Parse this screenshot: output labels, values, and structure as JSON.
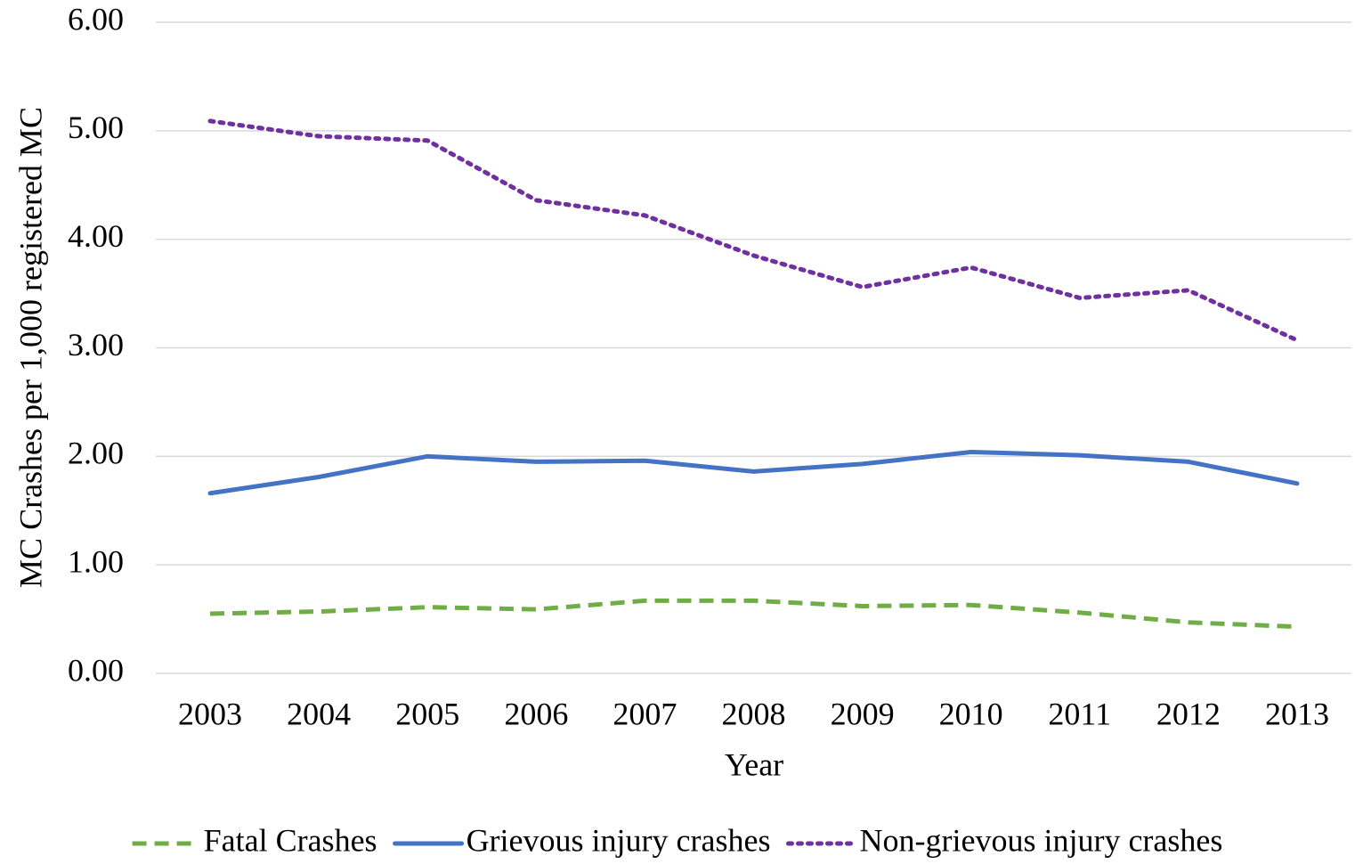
{
  "chart_data": {
    "type": "line",
    "y_label": "MC Crashes per 1,000 registered MC",
    "x_label": "Year",
    "categories": [
      "2003",
      "2004",
      "2005",
      "2006",
      "2007",
      "2008",
      "2009",
      "2010",
      "2011",
      "2012",
      "2013"
    ],
    "series": [
      {
        "name": "Fatal Crashes",
        "color": "#70ad47",
        "dash": "dashed",
        "values": [
          0.55,
          0.57,
          0.61,
          0.59,
          0.67,
          0.67,
          0.62,
          0.63,
          0.56,
          0.47,
          0.43
        ]
      },
      {
        "name": "Grievous injury crashes",
        "color": "#4472c4",
        "dash": "solid",
        "values": [
          1.66,
          1.81,
          2.0,
          1.95,
          1.96,
          1.86,
          1.93,
          2.04,
          2.01,
          1.95,
          1.75
        ]
      },
      {
        "name": "Non-grievous injury crashes",
        "color": "#7030a0",
        "dash": "dotted",
        "values": [
          5.09,
          4.95,
          4.91,
          4.36,
          4.22,
          3.85,
          3.56,
          3.74,
          3.46,
          3.53,
          3.07
        ]
      }
    ],
    "ylim": [
      0,
      6
    ],
    "yticks": [
      {
        "value": 0,
        "label": "0.00"
      },
      {
        "value": 1,
        "label": "1.00"
      },
      {
        "value": 2,
        "label": "2.00"
      },
      {
        "value": 3,
        "label": "3.00"
      },
      {
        "value": 4,
        "label": "4.00"
      },
      {
        "value": 5,
        "label": "5.00"
      },
      {
        "value": 6,
        "label": "6.00"
      }
    ],
    "grid": true,
    "legend": "bottom"
  }
}
